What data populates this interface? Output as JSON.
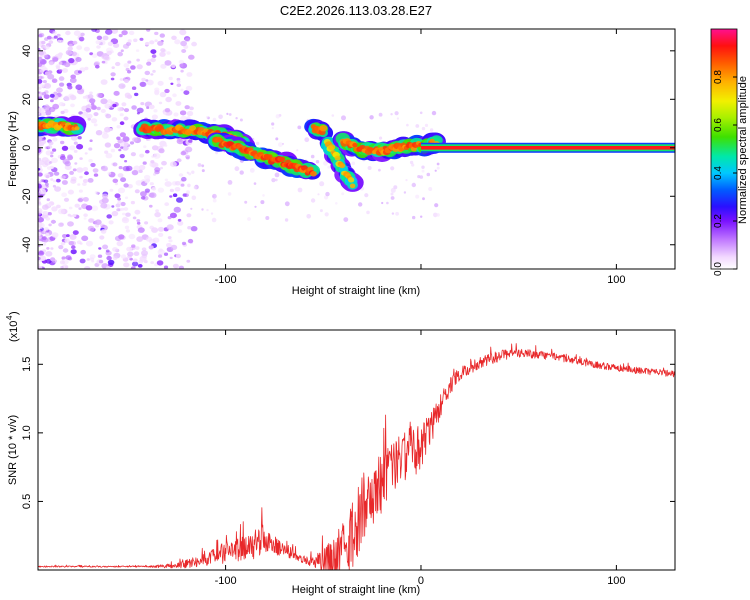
{
  "title": "C2E2.2026.113.03.28.E27",
  "colors": {
    "snr_line": "#e8282a",
    "axis": "#000000",
    "ridge_core": "#ff1a1a",
    "ridge_halo": "#22cc44"
  },
  "chart_data": [
    {
      "type": "heatmap",
      "title": "C2E2.2026.113.03.28.E27",
      "xlabel": "Height of straight line (km)",
      "ylabel": "Frequency (Hz)",
      "xlim": [
        -196,
        130
      ],
      "ylim": [
        -50,
        49
      ],
      "xticks": [
        -100,
        0,
        100
      ],
      "xticklabels": [
        "-100",
        "",
        "100"
      ],
      "yticks": [
        -40,
        -20,
        0,
        20,
        40
      ],
      "yticklabels": [
        "-40",
        "-20",
        "0",
        "20",
        "40"
      ],
      "colorbar": {
        "label": "Normalized spectral amplitude",
        "range": [
          0,
          1
        ],
        "ticks": [
          0.0,
          0.2,
          0.4,
          0.6,
          0.8
        ],
        "ticklabels": [
          "0.0",
          "0.2",
          "0.4",
          "0.6",
          "0.8"
        ]
      },
      "ridges": [
        {
          "name": "left-band",
          "points": [
            [
              -196,
              9
            ],
            [
              -185,
              9
            ],
            [
              -176,
              8.5
            ]
          ],
          "amp": 0.5
        },
        {
          "name": "upper-branch",
          "points": [
            [
              -143,
              8
            ],
            [
              -130,
              7.5
            ],
            [
              -115,
              7
            ],
            [
              -100,
              5
            ],
            [
              -90,
              2
            ]
          ],
          "amp": 0.55
        },
        {
          "name": "lower-branch",
          "points": [
            [
              -105,
              3
            ],
            [
              -90,
              -1
            ],
            [
              -80,
              -4
            ],
            [
              -70,
              -6
            ],
            [
              -62,
              -9
            ],
            [
              -55,
              -10
            ]
          ],
          "amp": 0.6
        },
        {
          "name": "mid-segment",
          "points": [
            [
              -55,
              8
            ],
            [
              -50,
              7
            ]
          ],
          "amp": 0.5
        },
        {
          "name": "drop-segment",
          "points": [
            [
              -48,
              2
            ],
            [
              -44,
              -3
            ],
            [
              -40,
              -9
            ],
            [
              -35,
              -15
            ]
          ],
          "amp": 0.35
        },
        {
          "name": "converge",
          "points": [
            [
              -40,
              3
            ],
            [
              -30,
              -1
            ],
            [
              -20,
              -1
            ],
            [
              -10,
              0
            ],
            [
              0,
              1
            ],
            [
              8,
              2
            ]
          ],
          "amp": 0.55
        },
        {
          "name": "steady-line",
          "points": [
            [
              0,
              0
            ],
            [
              130,
              0
            ]
          ],
          "amp": 1.0
        }
      ]
    },
    {
      "type": "line",
      "xlabel": "Height of straight line (km)",
      "ylabel": "SNR (10 * v/v)",
      "yscale_label": "(x10",
      "yscale_exponent": "4",
      "xlim": [
        -196,
        130
      ],
      "ylim": [
        0,
        1.75
      ],
      "xticks": [
        -100,
        0,
        100
      ],
      "xticklabels": [
        "-100",
        "0",
        "100"
      ],
      "yticks": [
        0.5,
        1.0,
        1.5
      ],
      "yticklabels": [
        "0.5",
        "1.0",
        "1.5"
      ],
      "series": [
        {
          "name": "SNR",
          "envelope_x": [
            -196,
            -140,
            -125,
            -115,
            -105,
            -95,
            -85,
            -80,
            -75,
            -70,
            -62,
            -55,
            -48,
            -42,
            -36,
            -30,
            -25,
            -20,
            -15,
            -10,
            -5,
            0,
            5,
            10,
            15,
            20,
            30,
            40,
            50,
            60,
            70,
            80,
            90,
            100,
            110,
            120,
            130
          ],
          "envelope_y": [
            0.03,
            0.03,
            0.05,
            0.1,
            0.16,
            0.22,
            0.3,
            0.35,
            0.25,
            0.18,
            0.12,
            0.1,
            0.18,
            0.3,
            0.5,
            0.7,
            0.78,
            0.85,
            0.95,
            1.0,
            1.05,
            1.05,
            1.15,
            1.3,
            1.4,
            1.48,
            1.55,
            1.6,
            1.62,
            1.6,
            1.58,
            1.55,
            1.52,
            1.5,
            1.48,
            1.47,
            1.45
          ],
          "noise_y": [
            0.01,
            0.01,
            0.04,
            0.08,
            0.12,
            0.16,
            0.22,
            0.22,
            0.14,
            0.08,
            0.06,
            0.08,
            0.25,
            0.45,
            0.55,
            0.5,
            0.45,
            0.45,
            0.4,
            0.35,
            0.4,
            0.38,
            0.25,
            0.18,
            0.12,
            0.1,
            0.08,
            0.08,
            0.07,
            0.06,
            0.06,
            0.05,
            0.05,
            0.05,
            0.05,
            0.05,
            0.05
          ]
        }
      ]
    }
  ]
}
